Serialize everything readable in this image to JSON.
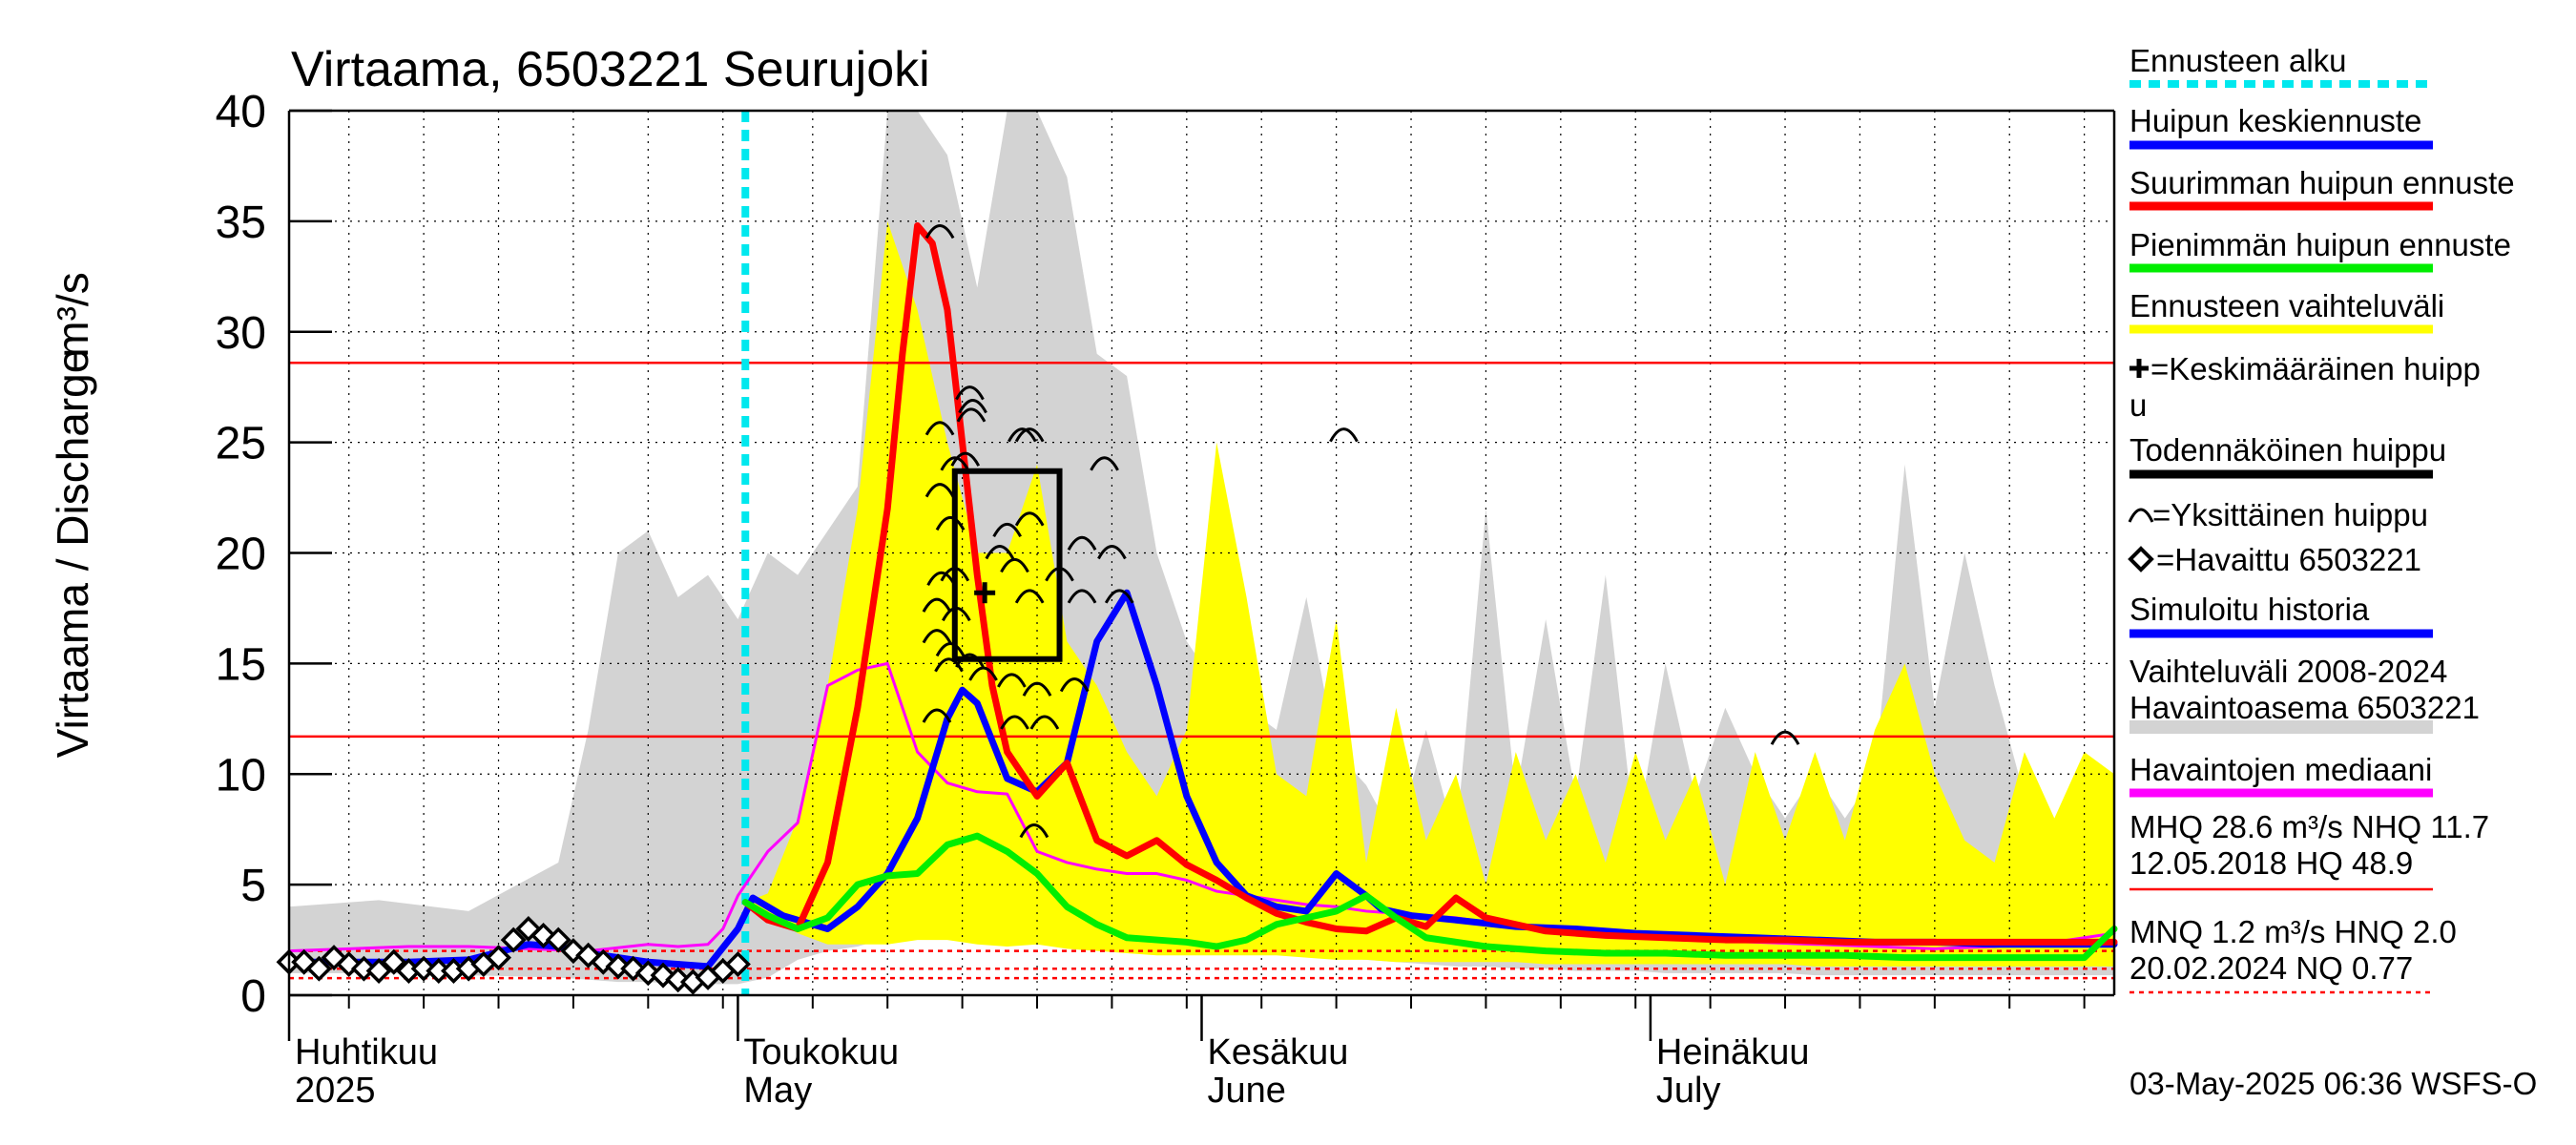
{
  "chart_data": {
    "type": "line",
    "title": "Virtaama, 6503221 Seurujoki",
    "ylabel": "Virtaama / Discharge",
    "yunit": "m³/s",
    "ylim": [
      0,
      40
    ],
    "yticks": [
      0,
      5,
      10,
      15,
      20,
      25,
      30,
      35,
      40
    ],
    "x_unit": "days since 1 April 2025",
    "xlim": [
      0,
      122
    ],
    "month_labels": [
      {
        "x": 0,
        "fi": "Huhtikuu",
        "en": "2025"
      },
      {
        "x": 30,
        "fi": "Toukokuu",
        "en": "May"
      },
      {
        "x": 61,
        "fi": "Kesäkuu",
        "en": "June"
      },
      {
        "x": 91,
        "fi": "Heinäkuu",
        "en": "July"
      }
    ],
    "week_ticks": [
      4,
      9,
      14,
      19,
      24,
      29,
      35,
      40,
      45,
      50,
      55,
      60,
      65,
      70,
      75,
      80,
      85,
      90,
      95,
      100,
      105,
      110,
      115,
      120
    ],
    "forecast_start_day": 30.5,
    "reference_lines": [
      {
        "name": "MHQ",
        "value": 28.6,
        "style": "solid",
        "color": "#ff0000"
      },
      {
        "name": "NHQ",
        "value": 11.7,
        "style": "solid",
        "color": "#ff0000"
      },
      {
        "name": "MNQ",
        "value": 1.2,
        "style": "dotted",
        "color": "#ff0000"
      },
      {
        "name": "HNQ",
        "value": 2.0,
        "style": "dotted",
        "color": "#ff0000"
      },
      {
        "name": "NQ",
        "value": 0.77,
        "style": "dotted",
        "color": "#ff0000"
      }
    ],
    "history_range": {
      "name": "Vaihteluväli 2008-2024 Havaintoasema 6503221",
      "color": "#d3d3d3",
      "x": [
        0,
        6,
        12,
        18,
        20,
        22,
        24,
        26,
        28,
        30,
        32,
        34,
        36,
        38,
        40,
        42,
        44,
        46,
        48,
        50,
        52,
        54,
        56,
        58,
        60,
        62,
        64,
        66,
        68,
        70,
        72,
        74,
        76,
        78,
        80,
        82,
        84,
        86,
        88,
        90,
        92,
        94,
        96,
        98,
        100,
        102,
        104,
        106,
        108,
        110,
        112,
        114,
        116,
        118,
        120,
        122
      ],
      "upper": [
        4.0,
        4.3,
        3.8,
        6,
        12,
        20,
        21,
        18,
        19,
        17,
        20,
        19,
        21,
        23,
        40,
        40,
        38,
        32,
        40,
        40,
        37,
        29,
        28,
        20,
        16,
        14,
        13,
        12,
        18,
        11,
        9.5,
        7,
        12,
        7,
        22,
        9,
        17,
        9,
        19,
        7,
        15,
        9,
        13,
        10,
        8,
        10,
        8,
        10,
        24,
        13,
        20,
        14,
        9,
        6,
        7,
        6
      ],
      "lower": [
        1.0,
        1.0,
        0.9,
        0.8,
        0.7,
        0.6,
        0.6,
        0.5,
        0.5,
        0.5,
        0.8,
        1.6,
        2.0,
        2.2,
        2.6,
        4.5,
        5,
        4.2,
        3.2,
        3.0,
        2.9,
        2.6,
        2.3,
        2.2,
        2.2,
        2.3,
        2.0,
        1.9,
        1.8,
        1.7,
        1.6,
        1.5,
        1.4,
        1.3,
        1.3,
        1.2,
        1.2,
        1.1,
        1.1,
        1.1,
        1.0,
        1.0,
        1.0,
        1.0,
        1.0,
        0.9,
        0.9,
        0.9,
        0.9,
        0.9,
        0.9,
        0.9,
        0.9,
        0.9,
        0.9,
        0.9
      ]
    },
    "forecast_range": {
      "name": "Ennusteen vaihteluväli",
      "color": "#ffff00",
      "x": [
        30.5,
        32,
        34,
        36,
        38,
        40,
        42,
        44,
        46,
        48,
        50,
        52,
        54,
        56,
        58,
        60,
        62,
        64,
        66,
        68,
        70,
        72,
        74,
        76,
        78,
        80,
        82,
        84,
        86,
        88,
        90,
        92,
        94,
        96,
        98,
        100,
        102,
        104,
        106,
        108,
        110,
        112,
        114,
        116,
        118,
        120,
        122
      ],
      "upper": [
        4.2,
        4.6,
        8,
        14,
        22,
        35,
        31,
        25,
        20,
        20,
        24,
        16,
        14,
        11,
        9,
        12,
        25,
        18,
        10,
        9,
        17,
        6,
        13,
        7,
        10,
        5,
        11,
        7,
        10,
        6,
        11,
        7,
        10,
        5,
        11,
        7,
        11,
        7,
        12,
        15,
        10,
        7,
        6,
        11,
        8,
        11,
        10
      ],
      "lower": [
        4.2,
        3.6,
        2.8,
        2.3,
        2.3,
        2.3,
        2.5,
        2.5,
        2.3,
        2.2,
        2.3,
        2.1,
        2.0,
        1.9,
        1.8,
        1.8,
        1.8,
        1.8,
        1.8,
        1.7,
        1.6,
        1.6,
        1.5,
        1.5,
        1.5,
        1.5,
        1.5,
        1.4,
        1.4,
        1.4,
        1.4,
        1.4,
        1.4,
        1.4,
        1.4,
        1.4,
        1.3,
        1.3,
        1.3,
        1.3,
        1.3,
        1.3,
        1.3,
        1.3,
        1.3,
        1.3,
        1.3
      ]
    },
    "series": [
      {
        "name": "Havaintojen mediaani",
        "color": "#ff00ff",
        "width": 3,
        "x": [
          0,
          4,
          8,
          12,
          16,
          20,
          24,
          26,
          28,
          29,
          30,
          32,
          34,
          36,
          38,
          40,
          42,
          44,
          46,
          48,
          50,
          52,
          54,
          56,
          58,
          60,
          62,
          64,
          66,
          68,
          70,
          72,
          74,
          76,
          78,
          80,
          82,
          84,
          86,
          88,
          90,
          94,
          98,
          102,
          106,
          110,
          114,
          118,
          122
        ],
        "y": [
          2.0,
          2.1,
          2.2,
          2.2,
          2.1,
          2.0,
          2.3,
          2.2,
          2.3,
          3.0,
          4.5,
          6.5,
          7.8,
          14.0,
          14.7,
          15.0,
          11.0,
          9.6,
          9.2,
          9.1,
          6.5,
          6.0,
          5.7,
          5.5,
          5.5,
          5.2,
          4.7,
          4.5,
          4.3,
          4.1,
          4.0,
          3.8,
          3.7,
          3.6,
          3.5,
          3.3,
          3.1,
          3.0,
          2.9,
          2.8,
          2.7,
          2.5,
          2.4,
          2.3,
          2.2,
          2.1,
          2.2,
          2.4,
          2.8
        ]
      },
      {
        "name": "Simuloitu historia / Huipun keskiennuste",
        "color": "#0000ff",
        "width": 7,
        "x": [
          0,
          4,
          8,
          12,
          16,
          18,
          20,
          24,
          28,
          30,
          31,
          33,
          36,
          38,
          40,
          42,
          44,
          45,
          46,
          48,
          50,
          52,
          54,
          56,
          58,
          60,
          62,
          64,
          66,
          68,
          70,
          72,
          73,
          75,
          78,
          82,
          86,
          90,
          94,
          98,
          102,
          106,
          110,
          114,
          118,
          122
        ],
        "y": [
          1.5,
          1.5,
          1.5,
          1.6,
          2.3,
          2.2,
          1.9,
          1.5,
          1.3,
          3.0,
          4.4,
          3.6,
          3.0,
          4.0,
          5.5,
          8.0,
          12.5,
          13.8,
          13.2,
          9.8,
          9.2,
          10.5,
          16.0,
          18.2,
          14.0,
          9.0,
          6.0,
          4.5,
          4.0,
          3.8,
          5.5,
          4.5,
          3.9,
          3.6,
          3.4,
          3.1,
          3.0,
          2.8,
          2.7,
          2.6,
          2.5,
          2.4,
          2.4,
          2.3,
          2.3,
          2.3
        ]
      },
      {
        "name": "Suurimman huipun ennuste",
        "color": "#ff0000",
        "width": 7,
        "x": [
          30.5,
          32,
          34,
          36,
          38,
          40,
          41,
          42,
          43,
          44,
          45,
          46,
          47,
          48,
          50,
          52,
          54,
          56,
          58,
          60,
          62,
          64,
          66,
          68,
          70,
          72,
          74,
          76,
          78,
          80,
          84,
          88,
          92,
          96,
          100,
          104,
          108,
          112,
          116,
          120,
          122
        ],
        "y": [
          4.2,
          3.4,
          3.0,
          6.0,
          13.0,
          22.0,
          29.0,
          34.8,
          34.0,
          31.0,
          25.0,
          19.0,
          14.0,
          11.0,
          9.0,
          10.5,
          7.0,
          6.3,
          7.0,
          5.9,
          5.2,
          4.4,
          3.7,
          3.3,
          3.0,
          2.9,
          3.5,
          3.1,
          4.4,
          3.5,
          2.9,
          2.7,
          2.6,
          2.5,
          2.5,
          2.4,
          2.4,
          2.4,
          2.4,
          2.4,
          2.4
        ]
      },
      {
        "name": "Pienimmän huipun ennuste",
        "color": "#00ee00",
        "width": 7,
        "x": [
          30.5,
          32,
          34,
          36,
          38,
          40,
          42,
          44,
          46,
          48,
          50,
          52,
          54,
          56,
          58,
          60,
          62,
          64,
          66,
          68,
          70,
          72,
          74,
          76,
          80,
          84,
          88,
          92,
          96,
          100,
          104,
          108,
          112,
          116,
          120,
          122
        ],
        "y": [
          4.2,
          3.6,
          3.0,
          3.5,
          5.0,
          5.4,
          5.5,
          6.8,
          7.2,
          6.5,
          5.5,
          4.0,
          3.2,
          2.6,
          2.5,
          2.4,
          2.2,
          2.5,
          3.2,
          3.5,
          3.8,
          4.5,
          3.5,
          2.6,
          2.2,
          2.0,
          1.9,
          1.9,
          1.8,
          1.8,
          1.8,
          1.7,
          1.7,
          1.7,
          1.7,
          3.0
        ]
      }
    ],
    "observed": {
      "name": "Havaittu 6503221",
      "x": [
        0,
        1,
        2,
        3,
        4,
        5,
        6,
        7,
        8,
        9,
        10,
        11,
        12,
        13,
        14,
        15,
        16,
        17,
        18,
        19,
        20,
        21,
        22,
        23,
        24,
        25,
        26,
        27,
        28,
        29,
        30
      ],
      "y": [
        1.5,
        1.5,
        1.2,
        1.7,
        1.4,
        1.2,
        1.1,
        1.5,
        1.1,
        1.2,
        1.1,
        1.1,
        1.2,
        1.4,
        1.7,
        2.5,
        3.0,
        2.7,
        2.5,
        2.0,
        1.8,
        1.5,
        1.3,
        1.2,
        1.0,
        0.9,
        0.7,
        0.6,
        0.8,
        1.1,
        1.4
      ]
    },
    "individual_peaks": [
      [
        43.5,
        34.5
      ],
      [
        45.5,
        27.2
      ],
      [
        45.7,
        26.6
      ],
      [
        45.6,
        26.2
      ],
      [
        49,
        25.3
      ],
      [
        49.5,
        25.3
      ],
      [
        45.2,
        24.2
      ],
      [
        54.5,
        24.0
      ],
      [
        70.5,
        25.3
      ],
      [
        43.5,
        25.6
      ],
      [
        44.5,
        24.0
      ],
      [
        43.5,
        22.8
      ],
      [
        44.2,
        21.3
      ],
      [
        48,
        21.0
      ],
      [
        49.5,
        21.5
      ],
      [
        53,
        20.4
      ],
      [
        55,
        20.0
      ],
      [
        47.5,
        20.0
      ],
      [
        44.5,
        19.0
      ],
      [
        43.6,
        18.8
      ],
      [
        43.3,
        17.6
      ],
      [
        44.6,
        17.2
      ],
      [
        48.5,
        19.4
      ],
      [
        49.5,
        18.0
      ],
      [
        51.5,
        19.0
      ],
      [
        53,
        18.0
      ],
      [
        55.5,
        18.0
      ],
      [
        43.3,
        16.2
      ],
      [
        44.2,
        15.6
      ],
      [
        45.5,
        15.1
      ],
      [
        44.1,
        14.9
      ],
      [
        46.4,
        14.5
      ],
      [
        48.3,
        14.2
      ],
      [
        50,
        13.8
      ],
      [
        52.5,
        14.0
      ],
      [
        43.3,
        12.6
      ],
      [
        48.5,
        12.3
      ],
      [
        50.5,
        12.3
      ],
      [
        49.8,
        7.4
      ],
      [
        100,
        11.6
      ]
    ],
    "mean_peak": [
      46.5,
      18.2
    ],
    "probable_peak_box": {
      "x0": 44.5,
      "x1": 51.5,
      "y0": 15.2,
      "y1": 23.7
    },
    "legend": [
      {
        "label": "Ennusteen alku",
        "kind": "dash",
        "color": "#00e8ee"
      },
      {
        "label": "Huipun keskiennuste",
        "kind": "line",
        "color": "#0000ff"
      },
      {
        "label": "Suurimman huipun ennuste",
        "kind": "line",
        "color": "#ff0000"
      },
      {
        "label": "Pienimmän huipun ennuste",
        "kind": "line",
        "color": "#00ee00"
      },
      {
        "label": "Ennusteen vaihteluväli",
        "kind": "line",
        "color": "#ffff00"
      },
      {
        "label": "=Keskimääräinen huipp",
        "label2": "u",
        "kind": "plus",
        "color": "#000000"
      },
      {
        "label": "Todennäköinen huippu",
        "kind": "line",
        "color": "#000000"
      },
      {
        "label": "=Yksittäinen huippu",
        "kind": "arc",
        "color": "#000000"
      },
      {
        "label": "=Havaittu 6503221",
        "kind": "diamond",
        "color": "#000000"
      },
      {
        "label": "Simuloitu historia",
        "kind": "line",
        "color": "#0000ff"
      },
      {
        "label": "Vaihteluväli 2008-2024",
        "label2": " Havaintoasema 6503221",
        "kind": "line",
        "color": "#d3d3d3"
      },
      {
        "label": "Havaintojen mediaani",
        "kind": "line",
        "color": "#ff00ff"
      },
      {
        "label": "MHQ 28.6 m³/s NHQ 11.7",
        "label2": "12.05.2018 HQ 48.9",
        "kind": "line-thin",
        "color": "#ff0000"
      },
      {
        "label": "MNQ  1.2 m³/s HNQ  2.0",
        "label2": "20.02.2024 NQ 0.77",
        "kind": "dotted",
        "color": "#ff0000"
      }
    ],
    "footer": "03-May-2025 06:36 WSFS-O"
  }
}
